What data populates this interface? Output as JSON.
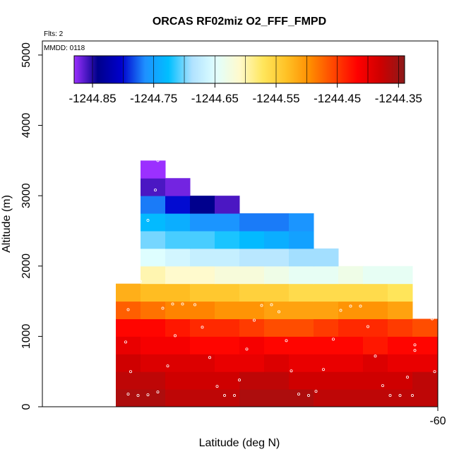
{
  "chart_data": {
    "type": "heatmap",
    "title": "ORCAS RF02miz O2_FFF_FMPD",
    "flights_label": "Flts: 2",
    "date_label": "MMDD: 0118",
    "xlabel": "Latitude (deg N)",
    "ylabel": "Altitude (m)",
    "x_ticks": [
      "-60"
    ],
    "y_ticks": [
      0,
      1000,
      2000,
      3000,
      4000,
      5000
    ],
    "ylim": [
      0,
      5200
    ],
    "colorbar": {
      "min": -1244.88,
      "max": -1244.34,
      "tick_values": [
        -1244.85,
        -1244.75,
        -1244.65,
        -1244.55,
        -1244.45,
        -1244.35
      ],
      "tick_labels": [
        "-1244.85",
        "-1244.75",
        "-1244.65",
        "-1244.55",
        "-1244.45",
        "-1244.35"
      ],
      "colors": [
        "#8b1a1a",
        "#cd0000",
        "#ff0000",
        "#ff4500",
        "#ff8c00",
        "#ffc125",
        "#ffe65c",
        "#fffacd",
        "#e0ffff",
        "#b0e2ff",
        "#00bfff",
        "#1e90ff",
        "#0000cd",
        "#00008b",
        "#9b30ff"
      ]
    },
    "altitude_bins": [
      0,
      250,
      500,
      750,
      1000,
      1250,
      1500,
      1750,
      2000,
      2250,
      2500,
      2750,
      3000,
      3250,
      3500,
      3750
    ],
    "cells": [
      {
        "row": 0,
        "values": [
          -1244.36,
          -1244.36,
          -1244.37,
          -1244.37,
          -1244.37,
          -1244.36,
          -1244.36,
          -1244.36,
          -1244.37,
          -1244.37,
          -1244.37,
          -1244.37,
          -1244.37,
          -1244.36
        ]
      },
      {
        "row": 1,
        "values": [
          -1244.37,
          -1244.37,
          -1244.38,
          -1244.38,
          -1244.38,
          -1244.37,
          -1244.37,
          -1244.38,
          -1244.38,
          -1244.38,
          -1244.38,
          -1244.38,
          -1244.37,
          -1244.38
        ]
      },
      {
        "row": 2,
        "values": [
          -1244.38,
          -1244.39,
          -1244.39,
          -1244.39,
          -1244.4,
          -1244.4,
          -1244.39,
          -1244.4,
          -1244.4,
          -1244.4,
          -1244.39,
          -1244.4,
          -1244.4,
          -1244.41
        ]
      },
      {
        "row": 3,
        "values": [
          -1244.4,
          -1244.41,
          -1244.41,
          -1244.42,
          -1244.42,
          -1244.41,
          -1244.42,
          -1244.42,
          -1244.42,
          -1244.42,
          -1244.43,
          -1244.42,
          -1244.42,
          -1244.42
        ]
      },
      {
        "row": 4,
        "values": [
          -1244.42,
          -1244.42,
          -1244.43,
          -1244.44,
          -1244.44,
          -1244.45,
          -1244.46,
          -1244.46,
          -1244.45,
          -1244.44,
          -1244.44,
          -1244.45,
          -1244.46,
          -1244.46
        ]
      },
      {
        "row": 5,
        "values": [
          -1244.47,
          -1244.48,
          -1244.49,
          -1244.49,
          -1244.5,
          -1244.5,
          -1244.51,
          -1244.51,
          -1244.51,
          -1244.5,
          -1244.5,
          -1244.51
        ]
      },
      {
        "row": 6,
        "values": [
          -1244.52,
          -1244.53,
          -1244.53,
          -1244.54,
          -1244.54,
          -1244.55,
          -1244.55,
          -1244.56,
          -1244.56,
          -1244.56,
          -1244.56,
          -1244.57
        ]
      },
      {
        "row": 7,
        "values": [
          null,
          -1244.6,
          -1244.61,
          -1244.61,
          -1244.62,
          -1244.62,
          -1244.63,
          -1244.64,
          -1244.64,
          -1244.63,
          -1244.64,
          -1244.64
        ]
      },
      {
        "row": 8,
        "values": [
          null,
          -1244.65,
          -1244.66,
          -1244.67,
          -1244.67,
          -1244.68,
          -1244.68,
          -1244.69,
          -1244.69
        ]
      },
      {
        "row": 9,
        "values": [
          null,
          -1244.7,
          -1244.71,
          -1244.71,
          -1244.72,
          -1244.73,
          -1244.74,
          -1244.75
        ]
      },
      {
        "row": 10,
        "values": [
          null,
          -1244.73,
          -1244.74,
          -1244.76,
          -1244.76,
          -1244.77,
          -1244.77,
          -1244.76
        ]
      },
      {
        "row": 11,
        "values": [
          null,
          -1244.77,
          -1244.8,
          -1244.84,
          -1244.86
        ]
      },
      {
        "row": 12,
        "values": [
          null,
          -1244.86,
          -1244.87
        ]
      },
      {
        "row": 13,
        "values": [
          null,
          -1244.89
        ]
      }
    ],
    "sample_points": [
      {
        "lat_col": 0.5,
        "alt": 180
      },
      {
        "lat_col": 0.9,
        "alt": 160
      },
      {
        "lat_col": 1.3,
        "alt": 170
      },
      {
        "lat_col": 1.7,
        "alt": 210
      },
      {
        "lat_col": 0.6,
        "alt": 500
      },
      {
        "lat_col": 0.4,
        "alt": 920
      },
      {
        "lat_col": 0.5,
        "alt": 1380
      },
      {
        "lat_col": 1.0,
        "alt": 1780
      },
      {
        "lat_col": 1.9,
        "alt": 1400
      },
      {
        "lat_col": 2.3,
        "alt": 1460
      },
      {
        "lat_col": 2.7,
        "alt": 1460
      },
      {
        "lat_col": 3.2,
        "alt": 1450
      },
      {
        "lat_col": 2.1,
        "alt": 580
      },
      {
        "lat_col": 2.4,
        "alt": 1010
      },
      {
        "lat_col": 3.5,
        "alt": 1130
      },
      {
        "lat_col": 3.8,
        "alt": 700
      },
      {
        "lat_col": 4.1,
        "alt": 290
      },
      {
        "lat_col": 4.4,
        "alt": 160
      },
      {
        "lat_col": 4.8,
        "alt": 160
      },
      {
        "lat_col": 5.0,
        "alt": 380
      },
      {
        "lat_col": 5.3,
        "alt": 820
      },
      {
        "lat_col": 5.6,
        "alt": 1230
      },
      {
        "lat_col": 5.9,
        "alt": 1440
      },
      {
        "lat_col": 6.3,
        "alt": 1450
      },
      {
        "lat_col": 6.6,
        "alt": 1350
      },
      {
        "lat_col": 6.9,
        "alt": 940
      },
      {
        "lat_col": 7.1,
        "alt": 510
      },
      {
        "lat_col": 7.4,
        "alt": 180
      },
      {
        "lat_col": 7.8,
        "alt": 160
      },
      {
        "lat_col": 8.1,
        "alt": 220
      },
      {
        "lat_col": 8.4,
        "alt": 530
      },
      {
        "lat_col": 8.8,
        "alt": 960
      },
      {
        "lat_col": 9.1,
        "alt": 1370
      },
      {
        "lat_col": 9.5,
        "alt": 1430
      },
      {
        "lat_col": 9.9,
        "alt": 1430
      },
      {
        "lat_col": 10.2,
        "alt": 1140
      },
      {
        "lat_col": 10.5,
        "alt": 720
      },
      {
        "lat_col": 10.8,
        "alt": 300
      },
      {
        "lat_col": 11.1,
        "alt": 160
      },
      {
        "lat_col": 11.5,
        "alt": 160
      },
      {
        "lat_col": 11.8,
        "alt": 420
      },
      {
        "lat_col": 12.1,
        "alt": 800
      },
      {
        "lat_col": 12.5,
        "alt": 1340
      },
      {
        "lat_col": 12.8,
        "alt": 1250
      },
      {
        "lat_col": 13.1,
        "alt": 1450
      },
      {
        "lat_col": 13.5,
        "alt": 1440
      },
      {
        "lat_col": 12.1,
        "alt": 880
      },
      {
        "lat_col": 12.9,
        "alt": 500
      },
      {
        "lat_col": 13.3,
        "alt": 230
      },
      {
        "lat_col": 13.8,
        "alt": 160
      },
      {
        "lat_col": 1.7,
        "alt": 3500
      },
      {
        "lat_col": 1.6,
        "alt": 3080
      },
      {
        "lat_col": 1.3,
        "alt": 2650
      },
      {
        "lat_col": 11.4,
        "alt": 2230
      },
      {
        "lat_col": 12.0,
        "alt": 160
      }
    ]
  }
}
